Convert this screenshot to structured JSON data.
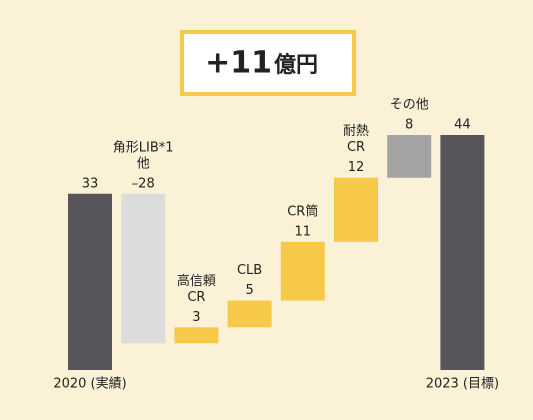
{
  "chart_data": {
    "type": "waterfall",
    "headline": {
      "value": "+11",
      "unit": "億円"
    },
    "categories": [
      [
        "2020 (実績)"
      ],
      [
        "角形LIB*1",
        "他"
      ],
      [
        "高信頼",
        "CR"
      ],
      [
        "CLB"
      ],
      [
        "CR筒"
      ],
      [
        "耐熱",
        "CR"
      ],
      [
        "その他"
      ],
      [
        "2023 (目標)"
      ]
    ],
    "values": [
      33,
      -28,
      3,
      5,
      11,
      12,
      8,
      44
    ],
    "value_labels": [
      "33",
      "–28",
      "3",
      "5",
      "11",
      "12",
      "8",
      "44"
    ],
    "colors": [
      "#58555a",
      "#dcdcdc",
      "#f7c948",
      "#f7c948",
      "#f7c948",
      "#f7c948",
      "#a3a3a3",
      "#58555a"
    ]
  }
}
